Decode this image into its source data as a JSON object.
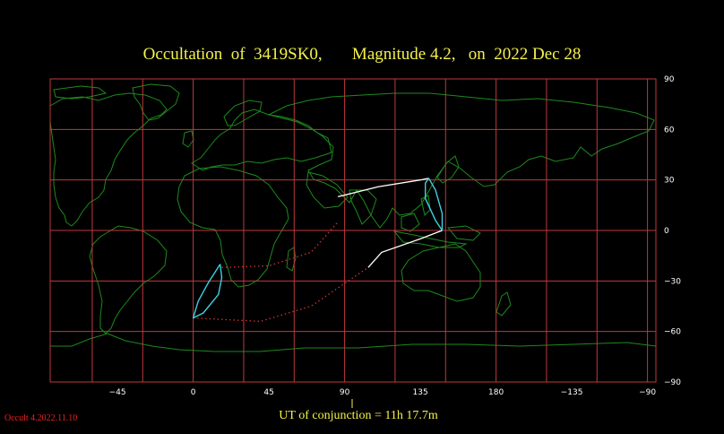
{
  "title": "Occultation  of  3419SK0,       Magnitude 4.2,   on  2022 Dec 28",
  "conjunction": "UT of conjunction = 11h 17.7m",
  "version": "Occult 4.2022.11.10",
  "axes": {
    "x_ticks": [
      "−45",
      "0",
      "45",
      "90",
      "135",
      "180",
      "−135",
      "−90"
    ],
    "y_ticks": [
      "90",
      "60",
      "30",
      "0",
      "−30",
      "−60",
      "−90"
    ]
  },
  "colors": {
    "grid": "#c0393b",
    "coast": "#1d8a1d",
    "path_day": "#ffffff",
    "path_night": "#cc3333",
    "limit_curve": "#40d0e0",
    "text": "#f4f24a"
  },
  "map_data": {
    "lon_range": [
      -85,
      275
    ],
    "lat_range": [
      -90,
      90
    ],
    "grid_step_deg": 30,
    "north_limit_day": [
      [
        86,
        20
      ],
      [
        110,
        26
      ],
      [
        135,
        30
      ],
      [
        140,
        31
      ]
    ],
    "north_limit_night": [
      [
        17,
        -22
      ],
      [
        45,
        -21
      ],
      [
        70,
        -13
      ],
      [
        86,
        5
      ]
    ],
    "south_limit_day": [
      [
        148,
        0
      ],
      [
        135,
        -5
      ],
      [
        112,
        -13
      ],
      [
        104,
        -22
      ]
    ],
    "south_limit_night": [
      [
        0,
        -52
      ],
      [
        40,
        -54
      ],
      [
        70,
        -45
      ],
      [
        104,
        -22
      ]
    ],
    "rise_set_curves": [
      [
        [
          16,
          -20
        ],
        [
          9,
          -31
        ],
        [
          3,
          -42
        ],
        [
          0,
          -52
        ],
        [
          6,
          -49
        ],
        [
          15,
          -38
        ],
        [
          17,
          -28
        ],
        [
          16,
          -20
        ]
      ],
      [
        [
          140,
          31
        ],
        [
          144,
          24
        ],
        [
          148,
          10
        ],
        [
          148,
          0
        ],
        [
          144,
          6
        ],
        [
          138,
          19
        ],
        [
          138,
          28
        ],
        [
          140,
          31
        ]
      ]
    ]
  }
}
